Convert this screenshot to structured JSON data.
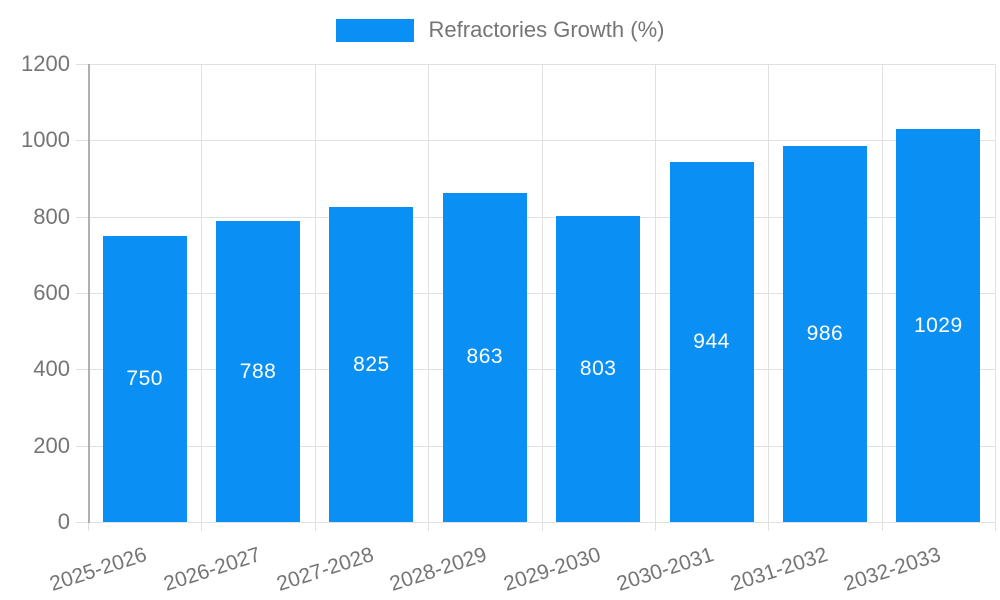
{
  "legend": {
    "label": "Refractories Growth (%)"
  },
  "colors": {
    "bar": "#0a90f5",
    "axis_text": "#757575",
    "grid": "#e0e0e0",
    "axis_line": "#b0b0b0",
    "value_label": "#ffffff",
    "background": "#ffffff"
  },
  "chart_data": {
    "type": "bar",
    "title": "",
    "xlabel": "",
    "ylabel": "",
    "categories": [
      "2025-2026",
      "2026-2027",
      "2027-2028",
      "2028-2029",
      "2029-2030",
      "2030-2031",
      "2031-2032",
      "2032-2033"
    ],
    "series": [
      {
        "name": "Refractories Growth (%)",
        "values": [
          750,
          788,
          825,
          863,
          803,
          944,
          986,
          1029
        ]
      }
    ],
    "ylim": [
      0,
      1200
    ],
    "yticks": [
      0,
      200,
      400,
      600,
      800,
      1000,
      1200
    ],
    "grid": true,
    "legend_position": "top",
    "bar_label_position": "inside-center",
    "x_tick_rotation_deg": -18
  }
}
